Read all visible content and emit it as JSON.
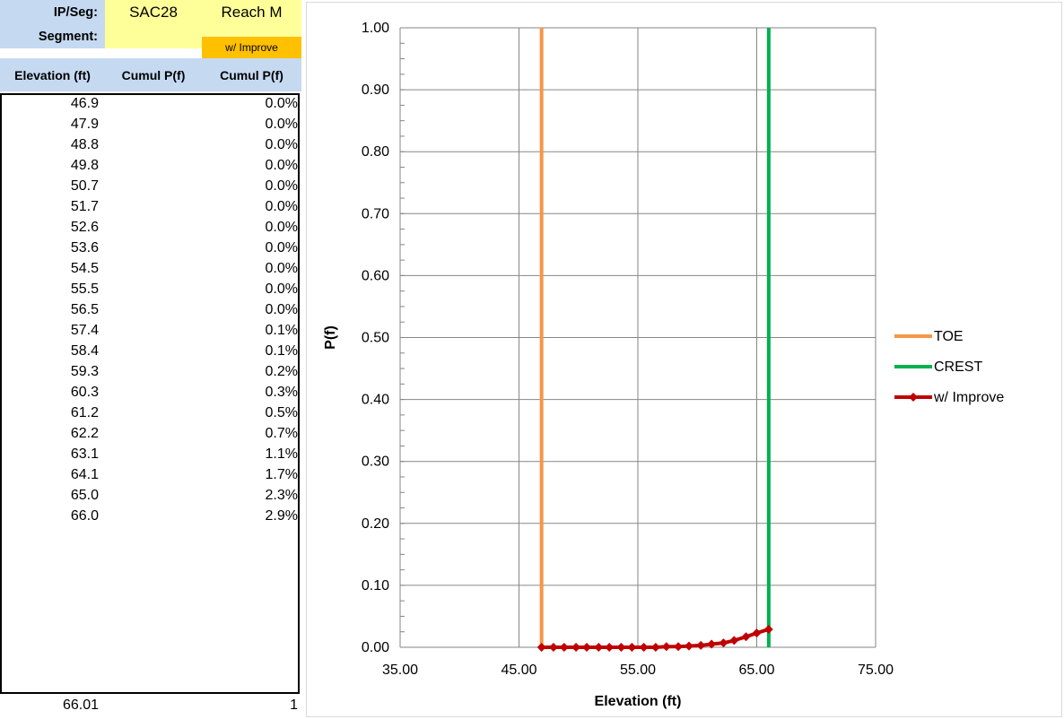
{
  "table": {
    "header": {
      "ipseg_label": "IP/Seg:",
      "ipseg_value": "SAC28",
      "reach_value": "Reach M",
      "segment_label": "Segment:",
      "segment_value": "",
      "improve_label": "w/ Improve",
      "col_elev": "Elevation (ft)",
      "col_cumul_1": "Cumul P(f)",
      "col_cumul_2": "Cumul P(f)"
    },
    "rows": [
      {
        "elev": "46.9",
        "cumul": "0.0%"
      },
      {
        "elev": "47.9",
        "cumul": "0.0%"
      },
      {
        "elev": "48.8",
        "cumul": "0.0%"
      },
      {
        "elev": "49.8",
        "cumul": "0.0%"
      },
      {
        "elev": "50.7",
        "cumul": "0.0%"
      },
      {
        "elev": "51.7",
        "cumul": "0.0%"
      },
      {
        "elev": "52.6",
        "cumul": "0.0%"
      },
      {
        "elev": "53.6",
        "cumul": "0.0%"
      },
      {
        "elev": "54.5",
        "cumul": "0.0%"
      },
      {
        "elev": "55.5",
        "cumul": "0.0%"
      },
      {
        "elev": "56.5",
        "cumul": "0.0%"
      },
      {
        "elev": "57.4",
        "cumul": "0.1%"
      },
      {
        "elev": "58.4",
        "cumul": "0.1%"
      },
      {
        "elev": "59.3",
        "cumul": "0.2%"
      },
      {
        "elev": "60.3",
        "cumul": "0.3%"
      },
      {
        "elev": "61.2",
        "cumul": "0.5%"
      },
      {
        "elev": "62.2",
        "cumul": "0.7%"
      },
      {
        "elev": "63.1",
        "cumul": "1.1%"
      },
      {
        "elev": "64.1",
        "cumul": "1.7%"
      },
      {
        "elev": "65.0",
        "cumul": "2.3%"
      },
      {
        "elev": "66.0",
        "cumul": "2.9%"
      }
    ],
    "footer": {
      "elev": "66.01",
      "cumul": "1"
    }
  },
  "chart_data": {
    "type": "line",
    "title": "",
    "xlabel": "Elevation (ft)",
    "ylabel": "P(f)",
    "xlim": [
      35,
      75
    ],
    "ylim": [
      0,
      1
    ],
    "x_ticks": [
      "35.00",
      "45.00",
      "55.00",
      "65.00",
      "75.00"
    ],
    "y_ticks": [
      "0.00",
      "0.10",
      "0.20",
      "0.30",
      "0.40",
      "0.50",
      "0.60",
      "0.70",
      "0.80",
      "0.90",
      "1.00"
    ],
    "grid": true,
    "legend_position": "right",
    "series": [
      {
        "name": "TOE",
        "color": "#f79646",
        "marker": "none",
        "x": [
          46.9,
          46.9
        ],
        "y": [
          0,
          1
        ]
      },
      {
        "name": "CREST",
        "color": "#00b050",
        "marker": "none",
        "x": [
          66.01,
          66.01
        ],
        "y": [
          0,
          1
        ]
      },
      {
        "name": "w/ Improve",
        "color": "#c00000",
        "marker": "diamond",
        "x": [
          46.9,
          47.9,
          48.8,
          49.8,
          50.7,
          51.7,
          52.6,
          53.6,
          54.5,
          55.5,
          56.5,
          57.4,
          58.4,
          59.3,
          60.3,
          61.2,
          62.2,
          63.1,
          64.1,
          65.0,
          66.0
        ],
        "y": [
          0.0,
          0.0,
          0.0,
          0.0,
          0.0,
          0.0,
          0.0,
          0.0,
          0.0,
          0.0,
          0.0,
          0.001,
          0.001,
          0.002,
          0.003,
          0.005,
          0.007,
          0.011,
          0.017,
          0.023,
          0.029
        ]
      }
    ]
  }
}
